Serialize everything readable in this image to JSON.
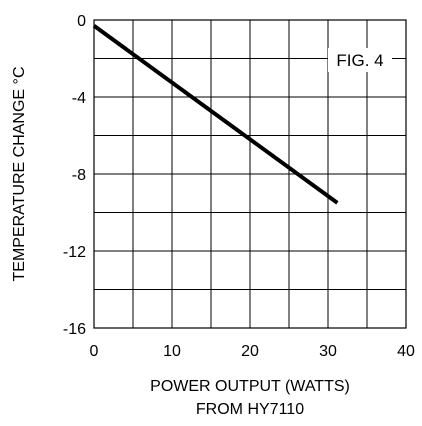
{
  "chart_data": {
    "type": "line",
    "annotation": "FIG. 4",
    "xlabel_lines": [
      "POWER OUTPUT (WATTS)",
      "FROM HY7110"
    ],
    "ylabel": "TEMPERATURE  CHANGE °C",
    "xlim": [
      0,
      40
    ],
    "ylim": [
      -16,
      0
    ],
    "x_ticks": [
      0,
      10,
      20,
      30,
      40
    ],
    "y_ticks": [
      0,
      -4,
      -8,
      -12,
      -16
    ],
    "x_tick_labels": [
      "0",
      "10",
      "20",
      "30",
      "40"
    ],
    "y_tick_labels": [
      "0",
      "-4",
      "-8",
      "-12",
      "-16"
    ],
    "grid": true,
    "series": [
      {
        "x": [
          0,
          31.2
        ],
        "y": [
          -0.3,
          -9.5
        ],
        "color": "#000000"
      }
    ]
  }
}
